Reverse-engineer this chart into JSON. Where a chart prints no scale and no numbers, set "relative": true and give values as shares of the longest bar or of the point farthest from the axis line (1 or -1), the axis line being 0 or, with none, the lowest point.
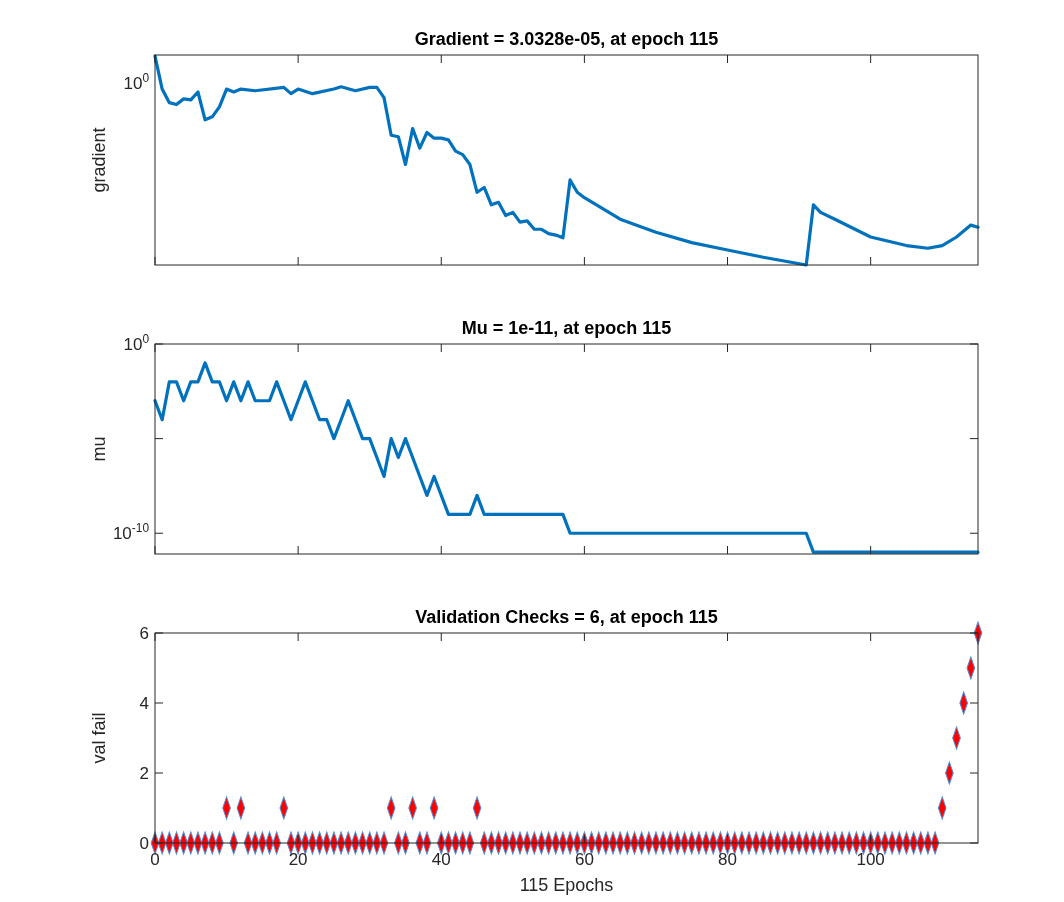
{
  "chart_data": [
    {
      "type": "line",
      "title": "Gradient = 3.0328e-05, at epoch 115",
      "ylabel": "gradient",
      "relative": true,
      "annotations": [
        "10$^{0}$"
      ],
      "xlim": [
        0,
        115
      ],
      "xticks": [
        0,
        20,
        40,
        60,
        80,
        100
      ],
      "tick_labels": "y",
      "series": [
        {
          "color": "#0072bd",
          "x": [
            0,
            1,
            2,
            3,
            4,
            5,
            6,
            7,
            8,
            9,
            10,
            11,
            12,
            14,
            18,
            19,
            20,
            22,
            25,
            26,
            28,
            30,
            31,
            32,
            33,
            34,
            35,
            36,
            37,
            38,
            39,
            40,
            41,
            42,
            43,
            44,
            45,
            46,
            47,
            48,
            49,
            50,
            51,
            52,
            53,
            54,
            55,
            56,
            57,
            58,
            59,
            60,
            65,
            70,
            75,
            80,
            85,
            91,
            92,
            93,
            95,
            100,
            105,
            108,
            110,
            112,
            114,
            115
          ],
          "values": [
            1,
            0.842,
            0.777,
            0.768,
            0.795,
            0.79,
            0.828,
            0.695,
            0.709,
            0.757,
            0.842,
            0.828,
            0.842,
            0.834,
            0.85,
            0.82,
            0.842,
            0.82,
            0.842,
            0.853,
            0.834,
            0.85,
            0.85,
            0.801,
            0.621,
            0.614,
            0.481,
            0.653,
            0.559,
            0.634,
            0.607,
            0.607,
            0.599,
            0.545,
            0.528,
            0.481,
            0.348,
            0.371,
            0.288,
            0.3,
            0.237,
            0.252,
            0.205,
            0.211,
            0.171,
            0.171,
            0.15,
            0.143,
            0.13,
            0.407,
            0.348,
            0.322,
            0.219,
            0.157,
            0.107,
            0.072,
            0.037,
            0,
            0.288,
            0.252,
            0.219,
            0.134,
            0.093,
            0.08,
            0.093,
            0.134,
            0.191,
            0.181
          ]
        }
      ]
    },
    {
      "type": "line",
      "title": "Mu = 1e-11, at epoch 115",
      "ylabel": "mu",
      "log": "y",
      "xlim": [
        0,
        115
      ],
      "xticks": [
        0,
        20,
        40,
        60,
        80,
        100
      ],
      "ylim": [
        8e-12,
        1
      ],
      "yticks": [
        {
          "value": 1e-10,
          "label": "10$^{-10}$"
        },
        {
          "value": 1e-05,
          "label": null
        },
        {
          "value": 1,
          "label": "10$^{0}$"
        }
      ],
      "tick_labels": "y",
      "series": [
        {
          "color": "#0072bd",
          "x": [
            0,
            1,
            2,
            3,
            4,
            5,
            6,
            7,
            8,
            9,
            10,
            11,
            12,
            13,
            14,
            15,
            16,
            17,
            18,
            19,
            20,
            21,
            22,
            23,
            24,
            25,
            26,
            27,
            28,
            29,
            30,
            31,
            32,
            33,
            34,
            35,
            36,
            37,
            38,
            39,
            40,
            41,
            42,
            43,
            44,
            45,
            46,
            57,
            58,
            91,
            92,
            115
          ],
          "values": [
            0.001,
            0.0001,
            0.01,
            0.01,
            0.001,
            0.01,
            0.01,
            0.1,
            0.01,
            0.01,
            0.001,
            0.01,
            0.001,
            0.01,
            0.001,
            0.001,
            0.001,
            0.01,
            0.001,
            0.0001,
            0.001,
            0.01,
            0.001,
            0.0001,
            0.0001,
            1e-05,
            0.0001,
            0.001,
            0.0001,
            1e-05,
            1e-05,
            1e-06,
            1e-07,
            1e-05,
            1e-06,
            1e-05,
            1e-06,
            1e-07,
            1e-08,
            1e-07,
            1e-08,
            1e-09,
            1e-09,
            1e-09,
            1e-09,
            1e-08,
            1e-09,
            1e-09,
            1e-10,
            1e-10,
            1e-11,
            1e-11
          ]
        }
      ]
    },
    {
      "type": "scatter",
      "title": "Validation Checks = 6, at epoch 115",
      "ylabel": "val fail",
      "xlabel": "115 Epochs",
      "marker": "diamond",
      "xlim": [
        0,
        115
      ],
      "xticks": [
        0,
        20,
        40,
        60,
        80,
        100
      ],
      "ylim": [
        0,
        6
      ],
      "yticks": [
        0,
        2,
        4,
        6
      ],
      "x": [
        0,
        1,
        2,
        3,
        4,
        5,
        6,
        7,
        8,
        9,
        10,
        11,
        12,
        13,
        14,
        15,
        16,
        17,
        18,
        19,
        20,
        21,
        22,
        23,
        24,
        25,
        26,
        27,
        28,
        29,
        30,
        31,
        32,
        33,
        34,
        35,
        36,
        37,
        38,
        39,
        40,
        41,
        42,
        43,
        44,
        45,
        46,
        47,
        48,
        49,
        50,
        51,
        52,
        53,
        54,
        55,
        56,
        57,
        58,
        59,
        60,
        61,
        62,
        63,
        64,
        65,
        66,
        67,
        68,
        69,
        70,
        71,
        72,
        73,
        74,
        75,
        76,
        77,
        78,
        79,
        80,
        81,
        82,
        83,
        84,
        85,
        86,
        87,
        88,
        89,
        90,
        91,
        92,
        93,
        94,
        95,
        96,
        97,
        98,
        99,
        100,
        101,
        102,
        103,
        104,
        105,
        106,
        107,
        108,
        109,
        110,
        111,
        112,
        113,
        114,
        115
      ],
      "series": [
        {
          "color": "#ff0000",
          "values": [
            0,
            0,
            0,
            0,
            0,
            0,
            0,
            0,
            0,
            0,
            1,
            0,
            1,
            0,
            0,
            0,
            0,
            0,
            1,
            0,
            0,
            0,
            0,
            0,
            0,
            0,
            0,
            0,
            0,
            0,
            0,
            0,
            0,
            1,
            0,
            0,
            1,
            0,
            0,
            1,
            0,
            0,
            0,
            0,
            0,
            1,
            0,
            0,
            0,
            0,
            0,
            0,
            0,
            0,
            0,
            0,
            0,
            0,
            0,
            0,
            0,
            0,
            0,
            0,
            0,
            0,
            0,
            0,
            0,
            0,
            0,
            0,
            0,
            0,
            0,
            0,
            0,
            0,
            0,
            0,
            0,
            0,
            0,
            0,
            0,
            0,
            0,
            0,
            0,
            0,
            0,
            0,
            0,
            0,
            0,
            0,
            0,
            0,
            0,
            0,
            0,
            0,
            0,
            0,
            0,
            0,
            0,
            0,
            0,
            0,
            1,
            2,
            3,
            4,
            5,
            6
          ]
        }
      ]
    }
  ]
}
